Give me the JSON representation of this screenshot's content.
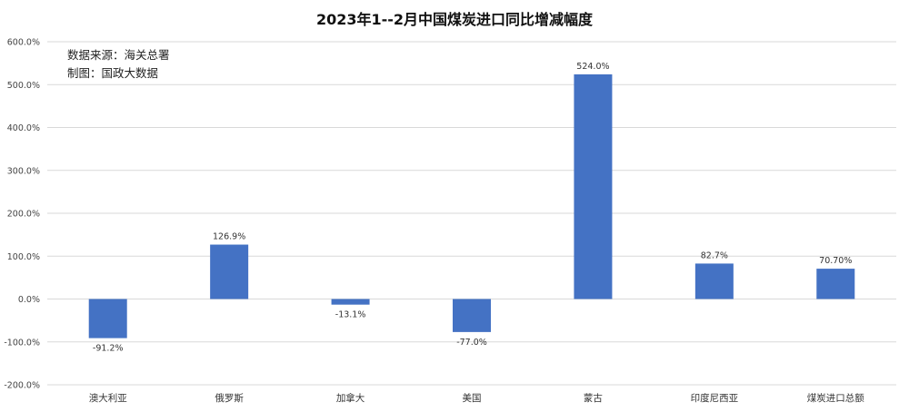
{
  "chart_data": {
    "type": "bar",
    "title": "2023年1--2月中国煤炭进口同比增减幅度",
    "notes": [
      "数据来源：海关总署",
      "制图：国政大数据"
    ],
    "categories": [
      "澳大利亚",
      "俄罗斯",
      "加拿大",
      "美国",
      "蒙古",
      "印度尼西亚",
      "煤炭进口总额"
    ],
    "values": [
      -91.2,
      126.9,
      -13.1,
      -77.0,
      524.0,
      82.7,
      70.7
    ],
    "data_labels": [
      "-91.2%",
      "126.9%",
      "-13.1%",
      "-77.0%",
      "524.0%",
      "82.7%",
      "70.70%"
    ],
    "ylim": [
      -200,
      600
    ],
    "yticks": [
      -200,
      -100,
      0,
      100,
      200,
      300,
      400,
      500,
      600
    ],
    "ytick_labels": [
      "-200.0%",
      "-100.0%",
      "0.0%",
      "100.0%",
      "200.0%",
      "300.0%",
      "400.0%",
      "500.0%",
      "600.0%"
    ],
    "grid": true,
    "legend": "none",
    "bar_color": "#4472C4",
    "grid_color": "#d9d9d9"
  }
}
